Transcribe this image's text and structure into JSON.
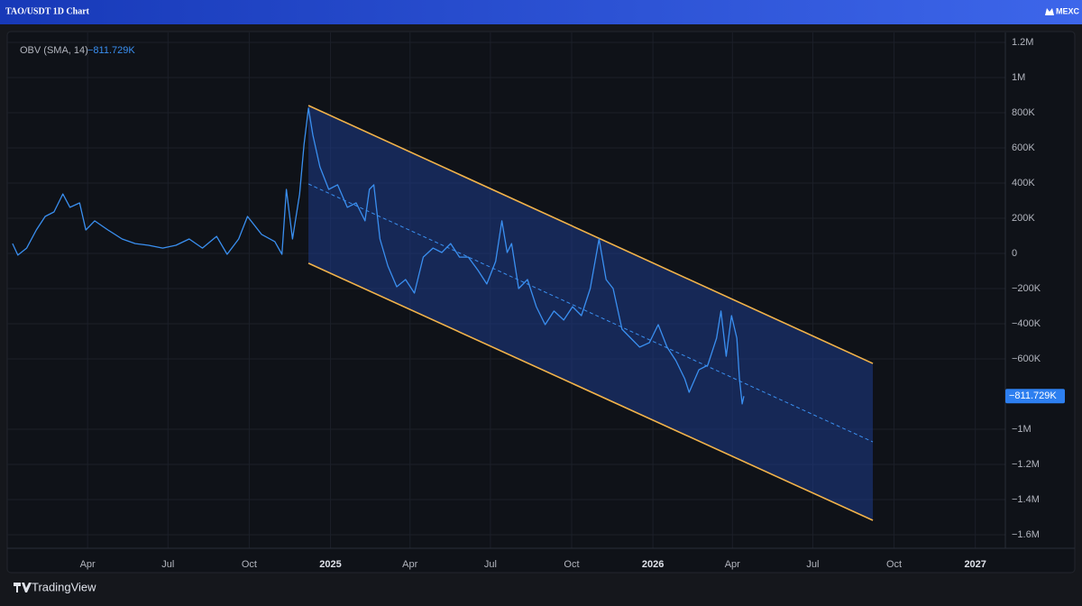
{
  "chart_data": {
    "type": "line",
    "title": "TAO/USDT 1D Chart",
    "brand": "MEXC",
    "footer": "TradingView",
    "legend_label": "OBV (SMA, 14)",
    "last_value": -811729,
    "last_value_label": "−811.729K",
    "xlim": [
      "2024-01-01",
      "2027-02-04"
    ],
    "xticks": [
      {
        "value": "2024-04",
        "label": "Apr"
      },
      {
        "value": "2024-07",
        "label": "Jul"
      },
      {
        "value": "2024-10",
        "label": "Oct"
      },
      {
        "value": "2025-01",
        "label": "2025"
      },
      {
        "value": "2025-04",
        "label": "Apr"
      },
      {
        "value": "2025-07",
        "label": "Jul"
      },
      {
        "value": "2025-10",
        "label": "Oct"
      },
      {
        "value": "2026-01",
        "label": "2026"
      },
      {
        "value": "2026-04",
        "label": "Apr"
      },
      {
        "value": "2026-07",
        "label": "Jul"
      },
      {
        "value": "2026-10",
        "label": "Oct"
      },
      {
        "value": "2027-01",
        "label": "2027"
      }
    ],
    "ylim": [
      -1677000,
      1246000
    ],
    "yticks": [
      {
        "value": 1200000,
        "label": "1.2M"
      },
      {
        "value": 1000000,
        "label": "1M"
      },
      {
        "value": 800000,
        "label": "800K"
      },
      {
        "value": 600000,
        "label": "600K"
      },
      {
        "value": 400000,
        "label": "400K"
      },
      {
        "value": 200000,
        "label": "200K"
      },
      0,
      {
        "value": -200000,
        "label": "−200K"
      },
      {
        "value": -400000,
        "label": "−400K"
      },
      {
        "value": -600000,
        "label": "−600K"
      },
      {
        "value": -1000000,
        "label": "−1M"
      },
      {
        "value": -1200000,
        "label": "−1.2M"
      },
      {
        "value": -1400000,
        "label": "−1.4M"
      },
      {
        "value": -1600000,
        "label": "−1.6M"
      }
    ],
    "grid": true,
    "series": [
      {
        "name": "OBV (SMA, 14)",
        "color": "#3a8ff0",
        "x": [
          "2024-01-07",
          "2024-01-13",
          "2024-01-23",
          "2024-02-03",
          "2024-02-13",
          "2024-02-23",
          "2024-03-04",
          "2024-03-12",
          "2024-03-23",
          "2024-03-30",
          "2024-04-09",
          "2024-04-24",
          "2024-05-10",
          "2024-05-25",
          "2024-06-09",
          "2024-06-25",
          "2024-07-10",
          "2024-07-25",
          "2024-08-09",
          "2024-08-25",
          "2024-09-06",
          "2024-09-19",
          "2024-09-29",
          "2024-10-15",
          "2024-10-30",
          "2024-11-07",
          "2024-11-12",
          "2024-11-19",
          "2024-11-27",
          "2024-12-02",
          "2024-12-07",
          "2024-12-12",
          "2024-12-20",
          "2024-12-30",
          "2025-01-09",
          "2025-01-20",
          "2025-01-30",
          "2025-02-09",
          "2025-02-14",
          "2025-02-19",
          "2025-02-26",
          "2025-03-07",
          "2025-03-17",
          "2025-03-27",
          "2025-04-06",
          "2025-04-16",
          "2025-04-27",
          "2025-05-07",
          "2025-05-17",
          "2025-05-27",
          "2025-06-06",
          "2025-06-17",
          "2025-06-27",
          "2025-07-07",
          "2025-07-14",
          "2025-07-20",
          "2025-07-25",
          "2025-08-02",
          "2025-08-12",
          "2025-08-22",
          "2025-09-01",
          "2025-09-11",
          "2025-09-22",
          "2025-10-02",
          "2025-10-12",
          "2025-10-22",
          "2025-11-01",
          "2025-11-09",
          "2025-11-17",
          "2025-11-27",
          "2025-12-07",
          "2025-12-17",
          "2025-12-28",
          "2026-01-07",
          "2026-01-17",
          "2026-01-27",
          "2026-02-06",
          "2026-02-11",
          "2026-02-22",
          "2026-03-04",
          "2026-03-14",
          "2026-03-19",
          "2026-03-25",
          "2026-03-31",
          "2026-04-06",
          "2026-04-09",
          "2026-04-12",
          "2026-04-14"
        ],
        "values": [
          56000,
          -10000,
          30000,
          133000,
          210000,
          236000,
          338000,
          262000,
          287000,
          133000,
          185000,
          133000,
          82000,
          56000,
          46000,
          30000,
          46000,
          82000,
          30000,
          97000,
          -5000,
          82000,
          210000,
          108000,
          67000,
          -5000,
          364000,
          82000,
          338000,
          620000,
          826000,
          672000,
          492000,
          364000,
          390000,
          262000,
          287000,
          185000,
          364000,
          390000,
          82000,
          -72000,
          -190000,
          -149000,
          -226000,
          -21000,
          30000,
          5000,
          56000,
          -21000,
          -21000,
          -97000,
          -174000,
          -46000,
          185000,
          5000,
          56000,
          -200000,
          -149000,
          -303000,
          -405000,
          -328000,
          -379000,
          -303000,
          -354000,
          -200000,
          82000,
          -149000,
          -200000,
          -431000,
          -482000,
          -533000,
          -508000,
          -405000,
          -533000,
          -610000,
          -713000,
          -790000,
          -662000,
          -636000,
          -482000,
          -328000,
          -585000,
          -354000,
          -482000,
          -713000,
          -856000,
          -811729
        ]
      }
    ],
    "channel": {
      "start": "2024-12-07",
      "end": "2026-09-07",
      "upper": [
        841000,
        -626000
      ],
      "middle": [
        395000,
        -1072000
      ],
      "lower": [
        -56000,
        -1518000
      ],
      "line_color": "#f2b34a",
      "fill_color": "#1e3a8a"
    }
  }
}
